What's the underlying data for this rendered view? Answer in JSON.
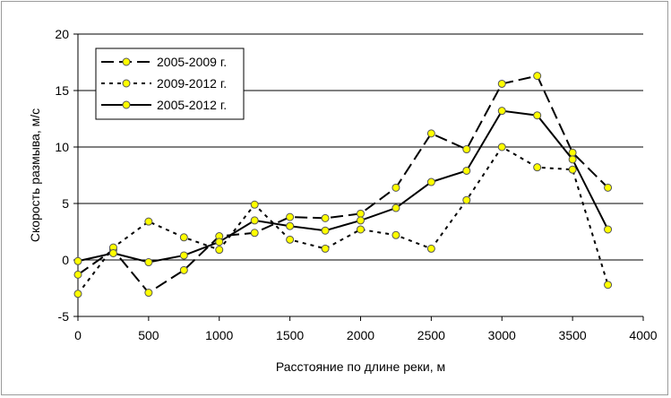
{
  "chart_data": {
    "type": "line",
    "xlabel": "Расстояние по длине реки, м",
    "ylabel": "Скорость размыва, м/с",
    "xlim": [
      0,
      4000
    ],
    "ylim": [
      -5,
      20
    ],
    "xticks": [
      0,
      500,
      1000,
      1500,
      2000,
      2500,
      3000,
      3500,
      4000
    ],
    "yticks": [
      -5,
      0,
      5,
      10,
      15,
      20
    ],
    "grid": "horizontal",
    "legend_position": "top-left",
    "marker_fill": "#ffff00",
    "line_color": "#000000",
    "series": [
      {
        "name": "2005-2009 г.",
        "dash": "long-dash",
        "x": [
          0,
          250,
          500,
          750,
          1000,
          1250,
          1500,
          1750,
          2000,
          2250,
          2500,
          2750,
          3000,
          3250,
          3500,
          3750
        ],
        "y": [
          -1.3,
          0.9,
          -2.9,
          -0.9,
          2.1,
          2.4,
          3.8,
          3.7,
          4.1,
          6.4,
          11.2,
          9.8,
          15.6,
          16.3,
          9.5,
          6.4
        ]
      },
      {
        "name": "2009-2012 г.",
        "dash": "dotted",
        "x": [
          0,
          250,
          500,
          750,
          1000,
          1250,
          1500,
          1750,
          2000,
          2250,
          2500,
          2750,
          3000,
          3250,
          3500,
          3750
        ],
        "y": [
          -3.0,
          1.1,
          3.4,
          2.0,
          0.9,
          4.9,
          1.8,
          1.0,
          2.7,
          2.2,
          1.0,
          5.3,
          10.0,
          8.2,
          8.0,
          -2.2
        ]
      },
      {
        "name": "2005-2012 г.",
        "dash": "solid",
        "x": [
          0,
          250,
          500,
          750,
          1000,
          1250,
          1500,
          1750,
          2000,
          2250,
          2500,
          2750,
          3000,
          3250,
          3500,
          3750
        ],
        "y": [
          -0.1,
          0.6,
          -0.2,
          0.4,
          1.6,
          3.5,
          3.0,
          2.6,
          3.5,
          4.6,
          6.9,
          7.9,
          13.2,
          12.8,
          8.9,
          2.7
        ]
      }
    ]
  }
}
